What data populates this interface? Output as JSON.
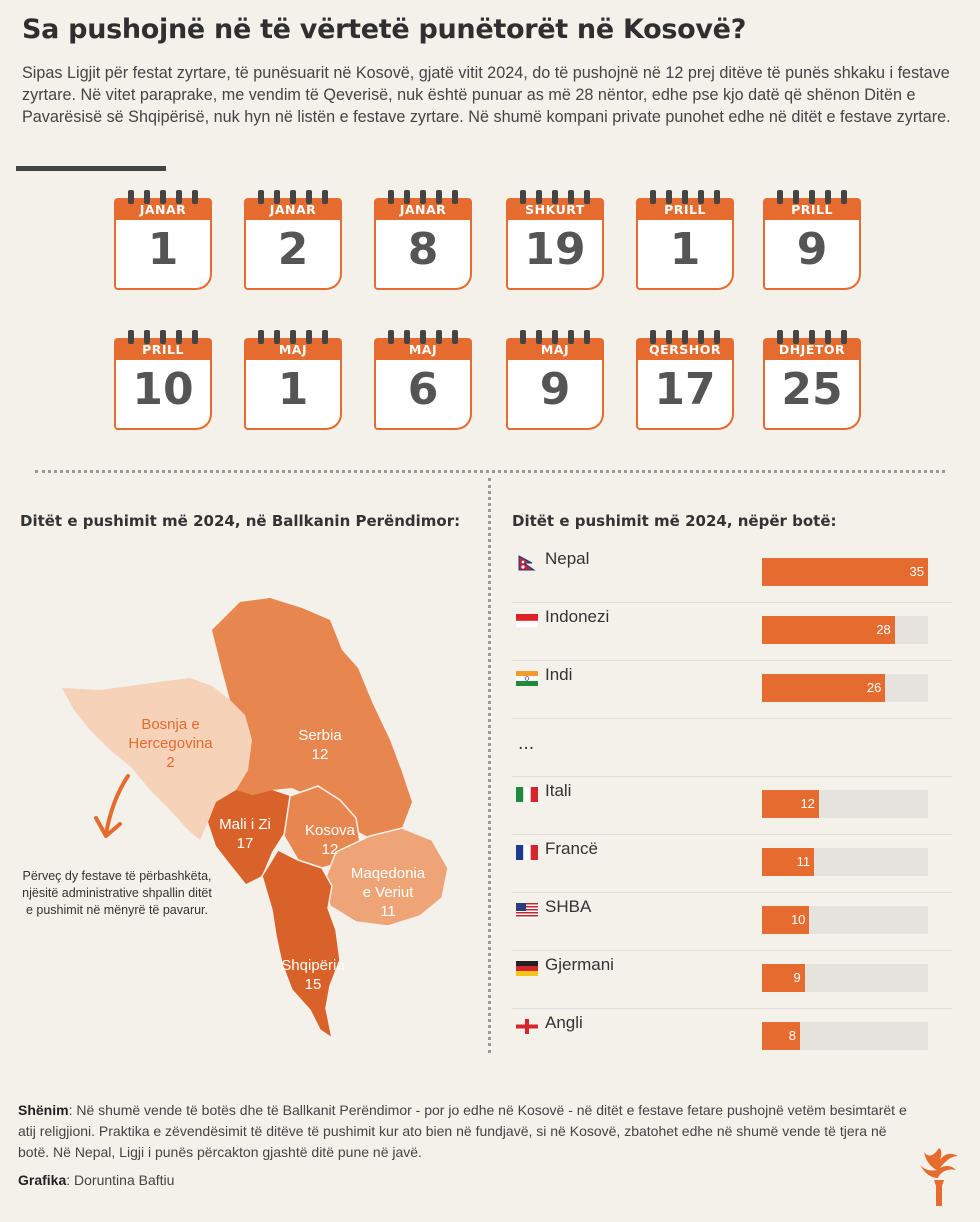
{
  "title": "Sa pushojnë në të vërtetë punëtorët në Kosovë?",
  "intro": "Sipas Ligjit për festat zyrtare, të punësuarit në Kosovë, gjatë vitit 2024, do të pushojnë në 12 prej ditëve të punës shkaku i festave zyrtare. Në vitet paraprake, me vendim të Qeverisë, nuk është punuar as më 28 nëntor, edhe pse kjo datë që shënon Ditën e Pavarësisë së Shqipërisë, nuk hyn në listën e festave zyrtare. Në shumë kompani private punohet edhe në ditët e festave zyrtare.",
  "holidays": [
    {
      "month": "JANAR",
      "day": "1"
    },
    {
      "month": "JANAR",
      "day": "2"
    },
    {
      "month": "JANAR",
      "day": "8"
    },
    {
      "month": "SHKURT",
      "day": "19"
    },
    {
      "month": "PRILL",
      "day": "1"
    },
    {
      "month": "PRILL",
      "day": "9"
    },
    {
      "month": "PRILL",
      "day": "10"
    },
    {
      "month": "MAJ",
      "day": "1"
    },
    {
      "month": "MAJ",
      "day": "6"
    },
    {
      "month": "MAJ",
      "day": "9"
    },
    {
      "month": "QERSHOR",
      "day": "17"
    },
    {
      "month": "DHJETOR",
      "day": "25"
    }
  ],
  "map_section": {
    "heading": "Ditët e pushimit më 2024, në Ballkanin Perëndimor:",
    "note": "Përveç dy festave të përbashkëta, njësitë administrative shpallin ditët e pushimit në mënyrë të pavarur."
  },
  "colors": {
    "accent": "#e56b2e",
    "map_dark": "#d9622a",
    "map_mid": "#e8864f",
    "map_light": "#eea476",
    "map_pale": "#f6d3b8",
    "track": "#e6e2de"
  },
  "chart_data": [
    {
      "type": "choropleth",
      "regions": [
        {
          "name": "Bosnja e Hercegovina",
          "value": 2
        },
        {
          "name": "Serbia",
          "value": 12
        },
        {
          "name": "Mali i Zi",
          "value": 17
        },
        {
          "name": "Kosova",
          "value": 12
        },
        {
          "name": "Maqedonia e Veriut",
          "value": 11
        },
        {
          "name": "Shqipëria",
          "value": 15
        }
      ]
    },
    {
      "type": "bar",
      "title": "Ditët e pushimit më 2024, nëpër botë:",
      "orientation": "horizontal",
      "xlim": [
        0,
        35
      ],
      "categories": [
        "Nepal",
        "Indonezi",
        "Indi",
        "...",
        "Itali",
        "Francë",
        "SHBA",
        "Gjermani",
        "Angli"
      ],
      "values": [
        35,
        28,
        26,
        null,
        12,
        11,
        10,
        9,
        8
      ]
    }
  ],
  "footer": {
    "note_label": "Shënim",
    "note_text": ": Në shumë vende të botës dhe të Ballkanit Perëndimor - por jo edhe në Kosovë -  në ditët e festave fetare pushojnë vetëm besimtarët e atij religjioni. Praktika e zëvendësimit të ditëve të pushimit kur ato bien në fundjavë, si në Kosovë, zbatohet edhe në shumë vende të tjera në botë. Në Nepal, Ligji i punës përcakton gjashtë ditë pune në javë.",
    "credit_label": "Grafika",
    "credit_text": ": Doruntina Baftiu"
  }
}
